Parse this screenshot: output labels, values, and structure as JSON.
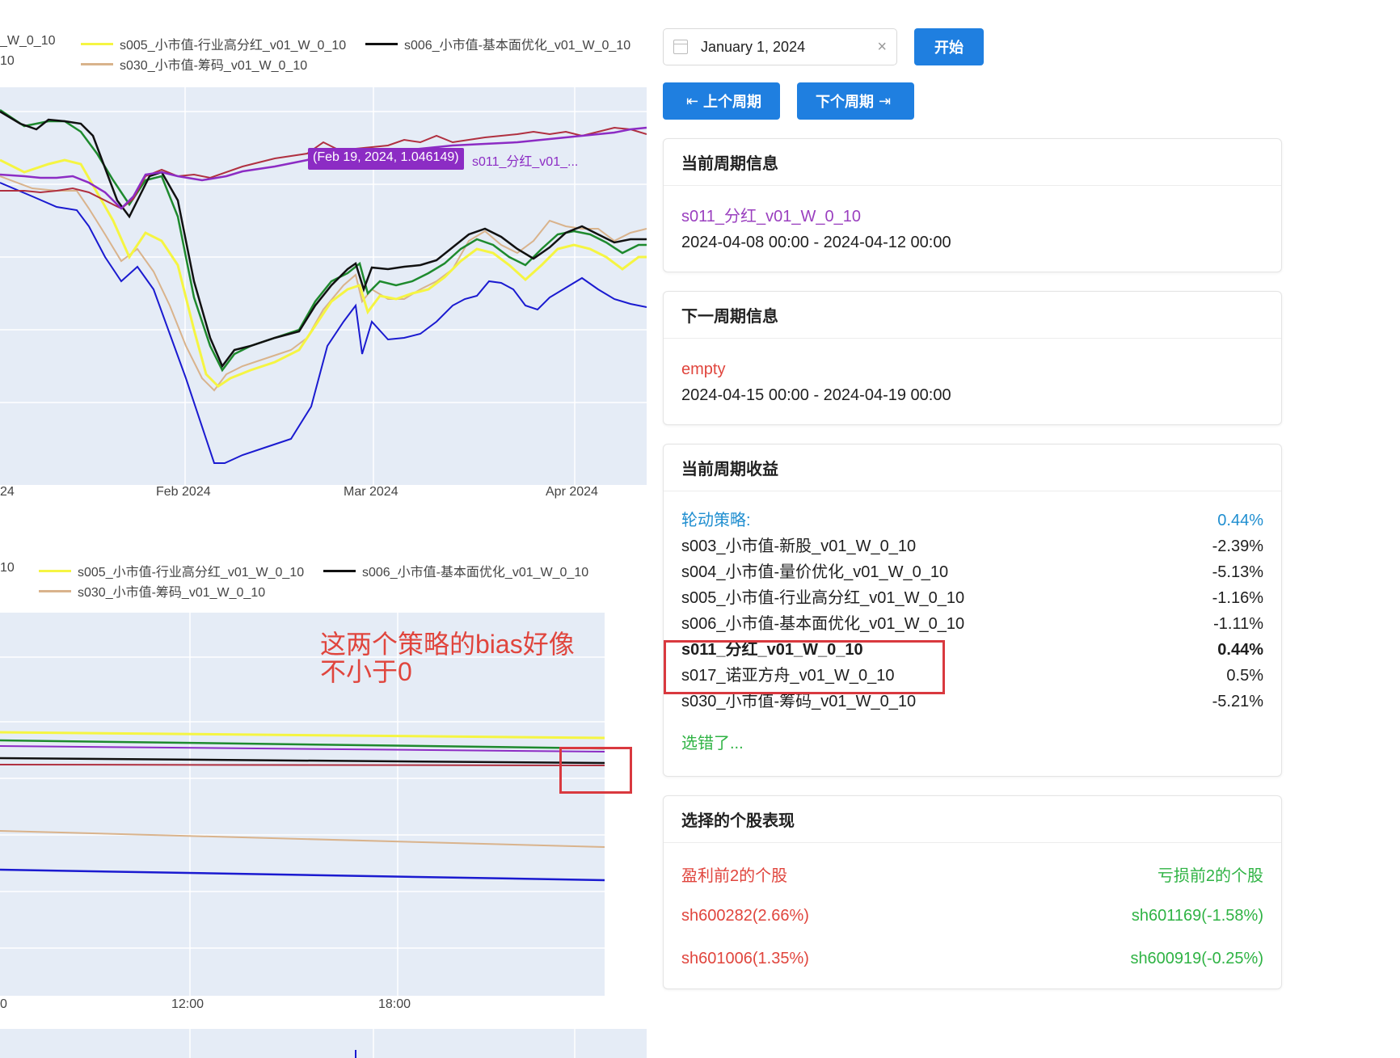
{
  "chart_top": {
    "legend": [
      {
        "label": "_W_0_10",
        "color": "#1a1a8a"
      },
      {
        "label": "s005_小市值-行业高分红_v01_W_0_10",
        "color": "#f5f542"
      },
      {
        "label": "s006_小市值-基本面优化_v01_W_0_10",
        "color": "#111111"
      },
      {
        "label": "10",
        "color": ""
      },
      {
        "label": "s030_小市值-筹码_v01_W_0_10",
        "color": "#d9b38c"
      }
    ],
    "x_ticks": [
      "24",
      "Feb 2024",
      "Mar 2024",
      "Apr 2024"
    ],
    "tooltip": "(Feb 19, 2024, 1.046149)",
    "tooltip_series": "s011_分红_v01_...",
    "colors": {
      "purple": "#8c2cc4",
      "darkred": "#b03040",
      "green": "#1e8a2e",
      "black": "#111111",
      "yellow": "#f5f542",
      "tan": "#d9b38c",
      "blue": "#1a1ad0"
    }
  },
  "chart_bottom": {
    "legend": [
      {
        "label": "10",
        "color": ""
      },
      {
        "label": "s005_小市值-行业高分红_v01_W_0_10",
        "color": "#f5f542"
      },
      {
        "label": "s006_小市值-基本面优化_v01_W_0_10",
        "color": "#111111"
      },
      {
        "label": "s030_小市值-筹码_v01_W_0_10",
        "color": "#d9b38c"
      }
    ],
    "x_ticks": [
      "0",
      "12:00",
      "18:00"
    ]
  },
  "annotation": {
    "line1": "这两个策略的bias好像",
    "line2": "不小于0"
  },
  "controls": {
    "date_value": "January 1, 2024",
    "clear_icon": "×",
    "start_label": "开始",
    "prev_label": "上个周期",
    "next_label": "下个周期",
    "prev_arrow": "⇤",
    "next_arrow": "⇥"
  },
  "current_period": {
    "title": "当前周期信息",
    "strategy": "s011_分红_v01_W_0_10",
    "range": "2024-04-08 00:00 - 2024-04-12 00:00"
  },
  "next_period": {
    "title": "下一周期信息",
    "strategy": "empty",
    "range": "2024-04-15 00:00 - 2024-04-19 00:00"
  },
  "returns": {
    "title": "当前周期收益",
    "rotation_label": "轮动策略:",
    "rotation_value": "0.44%",
    "rows": [
      {
        "name": "s003_小市值-新股_v01_W_0_10",
        "value": "-2.39%"
      },
      {
        "name": "s004_小市值-量价优化_v01_W_0_10",
        "value": "-5.13%"
      },
      {
        "name": "s005_小市值-行业高分红_v01_W_0_10",
        "value": "-1.16%"
      },
      {
        "name": "s006_小市值-基本面优化_v01_W_0_10",
        "value": "-1.11%"
      },
      {
        "name": "s011_分红_v01_W_0_10",
        "value": "0.44%"
      },
      {
        "name": "s017_诺亚方舟_v01_W_0_10",
        "value": "0.5%"
      },
      {
        "name": "s030_小市值-筹码_v01_W_0_10",
        "value": "-5.21%"
      }
    ],
    "wrong_label": "选错了..."
  },
  "stocks": {
    "title": "选择的个股表现",
    "top_label": "盈利前2的个股",
    "bottom_label": "亏损前2的个股",
    "top": [
      "sh600282(2.66%)",
      "sh601006(1.35%)"
    ],
    "bottom": [
      "sh601169(-1.58%)",
      "sh600919(-0.25%)"
    ]
  }
}
